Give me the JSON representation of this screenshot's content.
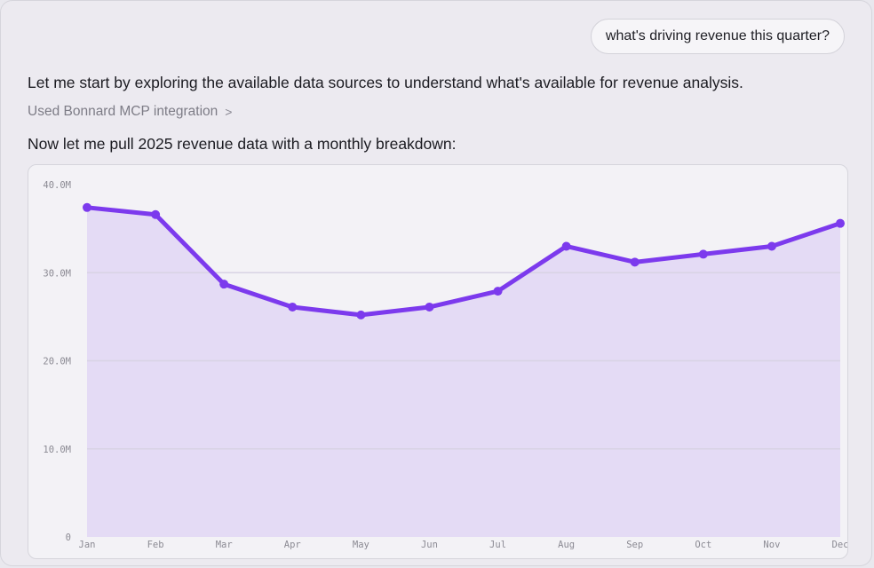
{
  "conversation": {
    "user_message": "what's driving revenue this quarter?",
    "assistant_intro": "Let me start by exploring the available data sources to understand what's available for revenue analysis.",
    "tool_call_label": "Used Bonnard MCP integration",
    "tool_call_chevron": ">",
    "assistant_followup": "Now let me pull 2025 revenue data with a monthly breakdown:"
  },
  "colors": {
    "line": "#7c3aed",
    "area_fill": "#e4dbf5",
    "grid": "#d8d3e4"
  },
  "chart_data": {
    "type": "area",
    "categories": [
      "Jan",
      "Feb",
      "Mar",
      "Apr",
      "May",
      "Jun",
      "Jul",
      "Aug",
      "Sep",
      "Oct",
      "Nov",
      "Dec"
    ],
    "series": [
      {
        "values": [
          37.4,
          36.6,
          28.7,
          26.1,
          25.2,
          26.1,
          27.9,
          33.0,
          31.2,
          32.1,
          33.0,
          35.6
        ]
      }
    ],
    "ylim": [
      0,
      40
    ],
    "yticks": [
      0,
      10,
      20,
      30,
      40
    ],
    "ytick_labels": [
      "0",
      "10.0M",
      "20.0M",
      "30.0M",
      "40.0M"
    ],
    "grid": true,
    "title": "",
    "xlabel": "",
    "ylabel": ""
  }
}
